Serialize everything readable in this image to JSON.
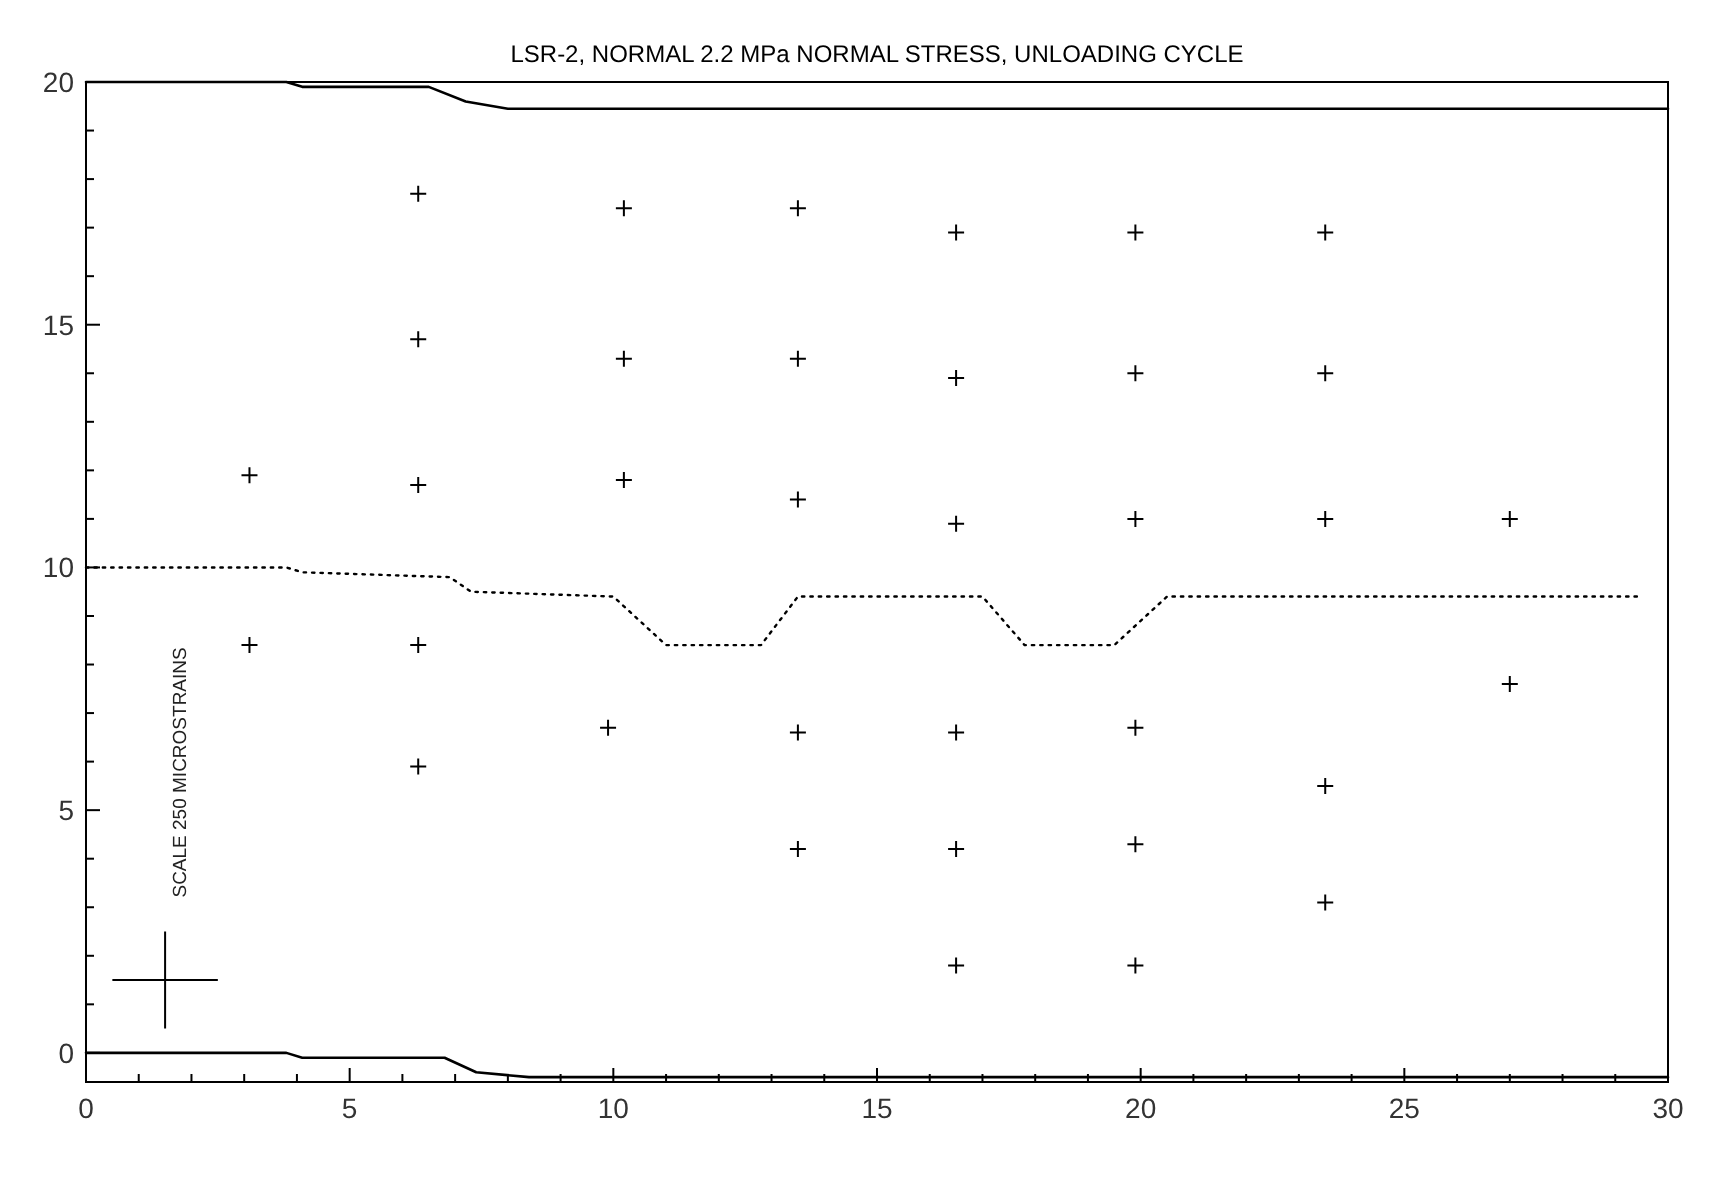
{
  "chart_data": {
    "type": "line",
    "title": "LSR-2, NORMAL 2.2 MPa NORMAL STRESS, UNLOADING CYCLE",
    "xlim": [
      0,
      30
    ],
    "ylim": [
      -0.6,
      20
    ],
    "xticks": [
      0,
      {
        "value": 1,
        "label": null
      },
      {
        "value": 2,
        "label": null
      },
      {
        "value": 3,
        "label": null
      },
      {
        "value": 4,
        "label": null
      },
      5,
      {
        "value": 6,
        "label": null
      },
      {
        "value": 7,
        "label": null
      },
      {
        "value": 8,
        "label": null
      },
      {
        "value": 9,
        "label": null
      },
      10,
      {
        "value": 11,
        "label": null
      },
      {
        "value": 12,
        "label": null
      },
      {
        "value": 13,
        "label": null
      },
      {
        "value": 14,
        "label": null
      },
      15,
      {
        "value": 16,
        "label": null
      },
      {
        "value": 17,
        "label": null
      },
      {
        "value": 18,
        "label": null
      },
      {
        "value": 19,
        "label": null
      },
      20,
      {
        "value": 21,
        "label": null
      },
      {
        "value": 22,
        "label": null
      },
      {
        "value": 23,
        "label": null
      },
      {
        "value": 24,
        "label": null
      },
      25,
      {
        "value": 26,
        "label": null
      },
      {
        "value": 27,
        "label": null
      },
      {
        "value": 28,
        "label": null
      },
      {
        "value": 29,
        "label": null
      },
      30
    ],
    "yticks": [
      0,
      {
        "value": 1,
        "label": null
      },
      {
        "value": 2,
        "label": null
      },
      {
        "value": 3,
        "label": null
      },
      {
        "value": 4,
        "label": null
      },
      5,
      {
        "value": 6,
        "label": null
      },
      {
        "value": 7,
        "label": null
      },
      {
        "value": 8,
        "label": null
      },
      {
        "value": 9,
        "label": null
      },
      10,
      {
        "value": 11,
        "label": null
      },
      {
        "value": 12,
        "label": null
      },
      {
        "value": 13,
        "label": null
      },
      {
        "value": 14,
        "label": null
      },
      15,
      {
        "value": 16,
        "label": null
      },
      {
        "value": 17,
        "label": null
      },
      {
        "value": 18,
        "label": null
      },
      {
        "value": 19,
        "label": null
      },
      20
    ],
    "grid": false,
    "series": [
      {
        "type": "line",
        "color": "#000000",
        "line_style": "solid",
        "x": [
          0,
          3.8,
          4.1,
          6.5,
          7.2,
          8,
          30
        ],
        "values": [
          20,
          20,
          19.9,
          19.9,
          19.6,
          19.45,
          19.45
        ]
      },
      {
        "type": "line",
        "color": "#000000",
        "line_style": "solid",
        "x": [
          0,
          3.8,
          4.1,
          6.8,
          7.4,
          8.4,
          30
        ],
        "values": [
          0,
          0,
          -0.1,
          -0.1,
          -0.4,
          -0.5,
          -0.5
        ]
      },
      {
        "type": "line",
        "color": "#000000",
        "line_style": "dotted",
        "x": [
          0,
          3.8,
          4.1,
          6.9,
          7.3,
          10,
          10.5,
          11,
          12.8,
          13.5,
          17,
          17.8,
          19.5,
          20.5,
          29.5
        ],
        "values": [
          10,
          10,
          9.9,
          9.8,
          9.5,
          9.4,
          8.9,
          8.4,
          8.4,
          9.4,
          9.4,
          8.4,
          8.4,
          9.4,
          9.4
        ]
      },
      {
        "type": "scatter",
        "color": "#000000",
        "marker": "cross",
        "x": [
          6.3,
          10.2,
          13.5,
          16.5,
          19.9,
          23.5,
          6.3,
          10.2,
          13.5,
          16.5,
          19.9,
          23.5,
          3.1,
          6.3,
          10.2,
          13.5,
          16.5,
          19.9,
          23.5,
          27,
          3.1,
          6.3,
          6.3,
          9.9,
          13.5,
          16.5,
          19.9,
          27,
          13.5,
          16.5,
          19.9,
          23.5,
          16.5,
          19.9,
          23.5
        ],
        "values": [
          17.7,
          17.4,
          17.4,
          16.9,
          16.9,
          16.9,
          14.7,
          14.3,
          14.3,
          13.9,
          14,
          14,
          11.9,
          11.7,
          11.8,
          11.4,
          10.9,
          11,
          11,
          11,
          8.4,
          8.4,
          5.9,
          6.7,
          6.6,
          6.6,
          6.7,
          7.6,
          4.2,
          4.2,
          4.3,
          5.5,
          1.8,
          1.8,
          3.1
        ]
      }
    ],
    "annotations": [
      "SCALE 250 MICROSTRAINS"
    ]
  }
}
